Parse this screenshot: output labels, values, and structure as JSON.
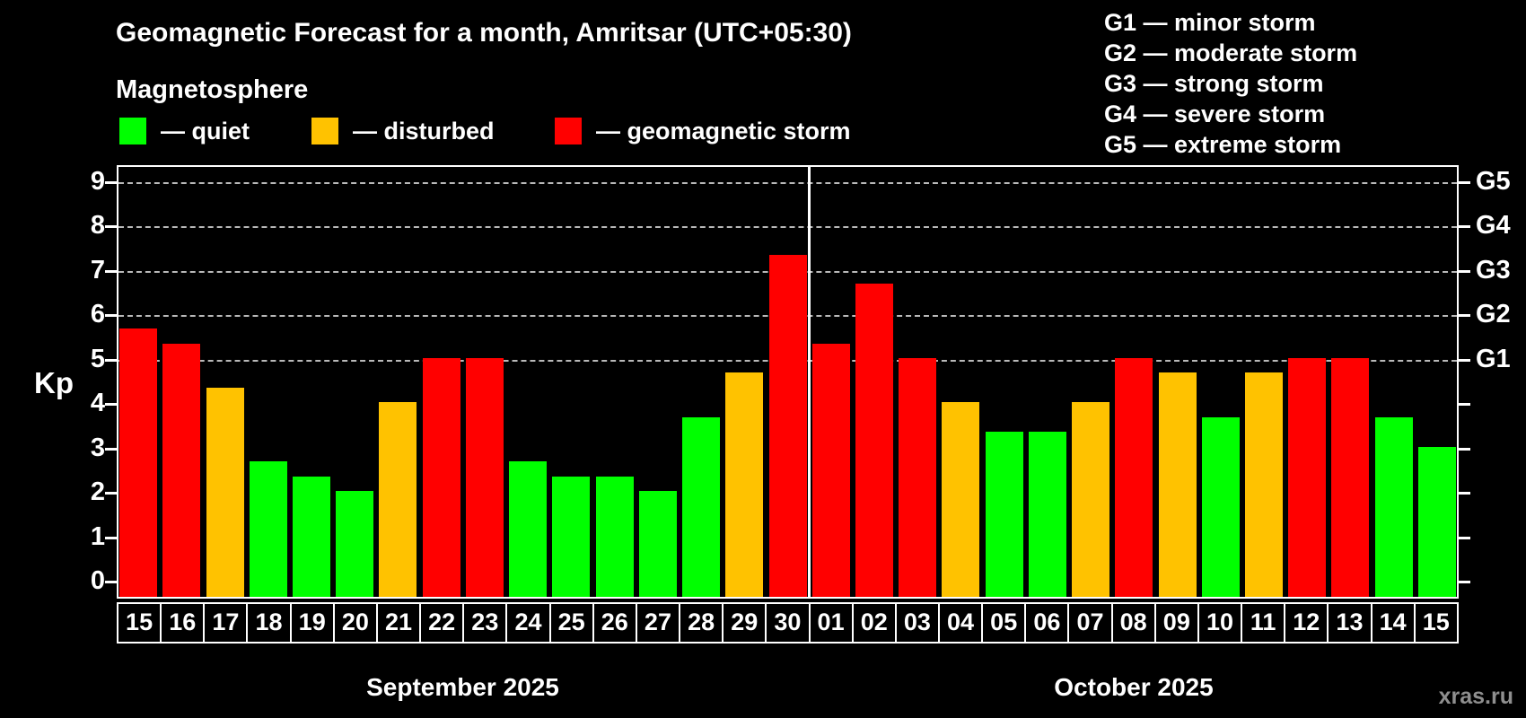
{
  "watermark": "xras.ru",
  "g_legend": [
    "G1 — minor storm",
    "G2 — moderate storm",
    "G3 — strong storm",
    "G4 — severe storm",
    "G5 — extreme storm"
  ],
  "chart_data": {
    "type": "bar",
    "title": "Geomagnetic Forecast for a month, Amritsar (UTC+05:30)",
    "subtitle": "Magnetosphere",
    "ylabel": "Kp",
    "ylim": [
      0,
      9
    ],
    "y_ticks": [
      0,
      1,
      2,
      3,
      4,
      5,
      6,
      7,
      8,
      9
    ],
    "dashed_gridlines": [
      5,
      6,
      7,
      8,
      9
    ],
    "right_axis_labels": [
      {
        "text": "G1",
        "kp": 5
      },
      {
        "text": "G2",
        "kp": 6
      },
      {
        "text": "G3",
        "kp": 7
      },
      {
        "text": "G4",
        "kp": 8
      },
      {
        "text": "G5",
        "kp": 9
      }
    ],
    "legend": [
      {
        "label": "— quiet",
        "status": "quiet",
        "color": "#00ff00"
      },
      {
        "label": "— disturbed",
        "status": "disturbed",
        "color": "#ffc200"
      },
      {
        "label": "— geomagnetic storm",
        "status": "storm",
        "color": "#ff0000"
      }
    ],
    "status_colors": {
      "quiet": "#00ff00",
      "disturbed": "#ffc200",
      "storm": "#ff0000"
    },
    "months": [
      {
        "label": "September 2025",
        "days": [
          {
            "day": "15",
            "kp": 5.67,
            "status": "storm"
          },
          {
            "day": "16",
            "kp": 5.33,
            "status": "storm"
          },
          {
            "day": "17",
            "kp": 4.33,
            "status": "disturbed"
          },
          {
            "day": "18",
            "kp": 2.67,
            "status": "quiet"
          },
          {
            "day": "19",
            "kp": 2.33,
            "status": "quiet"
          },
          {
            "day": "20",
            "kp": 2.0,
            "status": "quiet"
          },
          {
            "day": "21",
            "kp": 4.0,
            "status": "disturbed"
          },
          {
            "day": "22",
            "kp": 5.0,
            "status": "storm"
          },
          {
            "day": "23",
            "kp": 5.0,
            "status": "storm"
          },
          {
            "day": "24",
            "kp": 2.67,
            "status": "quiet"
          },
          {
            "day": "25",
            "kp": 2.33,
            "status": "quiet"
          },
          {
            "day": "26",
            "kp": 2.33,
            "status": "quiet"
          },
          {
            "day": "27",
            "kp": 2.0,
            "status": "quiet"
          },
          {
            "day": "28",
            "kp": 3.67,
            "status": "quiet"
          },
          {
            "day": "29",
            "kp": 4.67,
            "status": "disturbed"
          },
          {
            "day": "30",
            "kp": 7.33,
            "status": "storm"
          }
        ]
      },
      {
        "label": "October 2025",
        "days": [
          {
            "day": "01",
            "kp": 5.33,
            "status": "storm"
          },
          {
            "day": "02",
            "kp": 6.67,
            "status": "storm"
          },
          {
            "day": "03",
            "kp": 5.0,
            "status": "storm"
          },
          {
            "day": "04",
            "kp": 4.0,
            "status": "disturbed"
          },
          {
            "day": "05",
            "kp": 3.33,
            "status": "quiet"
          },
          {
            "day": "06",
            "kp": 3.33,
            "status": "quiet"
          },
          {
            "day": "07",
            "kp": 4.0,
            "status": "disturbed"
          },
          {
            "day": "08",
            "kp": 5.0,
            "status": "storm"
          },
          {
            "day": "09",
            "kp": 4.67,
            "status": "disturbed"
          },
          {
            "day": "10",
            "kp": 3.67,
            "status": "quiet"
          },
          {
            "day": "11",
            "kp": 4.67,
            "status": "disturbed"
          },
          {
            "day": "12",
            "kp": 5.0,
            "status": "storm"
          },
          {
            "day": "13",
            "kp": 5.0,
            "status": "storm"
          },
          {
            "day": "14",
            "kp": 3.67,
            "status": "quiet"
          },
          {
            "day": "15",
            "kp": 3.0,
            "status": "quiet"
          }
        ]
      }
    ]
  }
}
